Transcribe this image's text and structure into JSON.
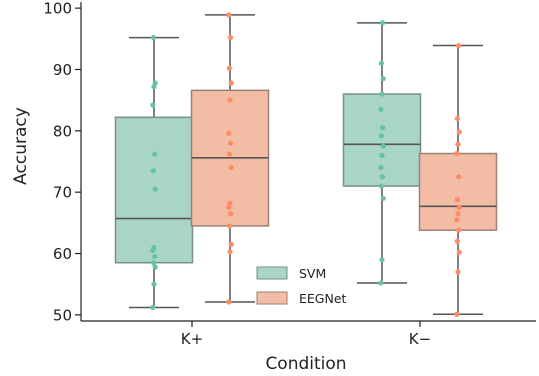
{
  "chart_data": {
    "type": "box",
    "xlabel": "Condition",
    "ylabel": "Accuracy",
    "ylim": [
      49,
      101
    ],
    "yticks": [
      50,
      60,
      70,
      80,
      90,
      100
    ],
    "categories": [
      "K+",
      "K−"
    ],
    "legend": {
      "placement": "lower-center"
    },
    "series": [
      {
        "name": "SVM",
        "color": "#a8d5c6",
        "edge": "#7a8f88",
        "point_color": "#66c2a5",
        "boxes": [
          {
            "min": 51.2,
            "q1": 58.5,
            "median": 65.7,
            "q3": 82.2,
            "max": 95.2,
            "points": [
              51.2,
              55.0,
              57.8,
              58.5,
              59.5,
              60.5,
              61.0,
              70.5,
              73.5,
              76.2,
              84.2,
              87.2,
              87.8,
              95.2
            ]
          },
          {
            "min": 55.2,
            "q1": 71.0,
            "median": 77.8,
            "q3": 86.0,
            "max": 97.6,
            "points": [
              55.2,
              59.0,
              69.0,
              71.0,
              72.5,
              74.0,
              76.0,
              77.5,
              79.2,
              80.5,
              83.5,
              86.0,
              88.5,
              91.0,
              97.6
            ]
          }
        ]
      },
      {
        "name": "EEGNet",
        "color": "#f2bca5",
        "edge": "#9a8277",
        "point_color": "#fc8d62",
        "boxes": [
          {
            "min": 52.1,
            "q1": 64.5,
            "median": 75.6,
            "q3": 86.6,
            "max": 98.9,
            "points": [
              52.1,
              60.3,
              61.5,
              64.5,
              66.5,
              67.5,
              68.2,
              74.0,
              76.2,
              78.0,
              79.6,
              85.0,
              87.8,
              90.2,
              95.2,
              98.9
            ]
          },
          {
            "min": 50.1,
            "q1": 63.8,
            "median": 67.7,
            "q3": 76.3,
            "max": 93.9,
            "points": [
              50.1,
              57.0,
              60.2,
              62.0,
              63.8,
              65.5,
              66.5,
              67.5,
              68.8,
              72.5,
              76.3,
              77.8,
              79.8,
              82.0,
              93.9
            ]
          }
        ]
      }
    ]
  }
}
